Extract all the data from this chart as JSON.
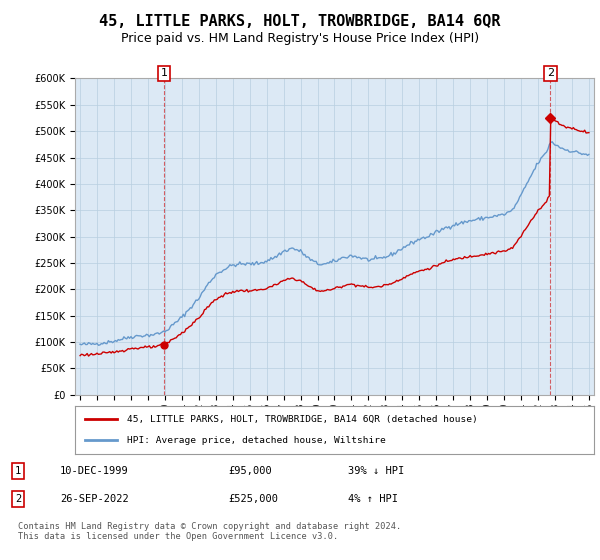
{
  "title": "45, LITTLE PARKS, HOLT, TROWBRIDGE, BA14 6QR",
  "subtitle": "Price paid vs. HM Land Registry's House Price Index (HPI)",
  "title_fontsize": 11,
  "subtitle_fontsize": 9,
  "background_color": "#ffffff",
  "plot_bg_color": "#dce9f5",
  "grid_color": "#b8cfe0",
  "sale1": {
    "date_num": 1999.94,
    "price": 95000,
    "label": "1",
    "date_str": "10-DEC-1999"
  },
  "sale2": {
    "date_num": 2022.73,
    "price": 525000,
    "label": "2",
    "date_str": "26-SEP-2022"
  },
  "legend_entry1": "45, LITTLE PARKS, HOLT, TROWBRIDGE, BA14 6QR (detached house)",
  "legend_entry2": "HPI: Average price, detached house, Wiltshire",
  "footer": "Contains HM Land Registry data © Crown copyright and database right 2024.\nThis data is licensed under the Open Government Licence v3.0.",
  "ylim": [
    0,
    600000
  ],
  "yticks": [
    0,
    50000,
    100000,
    150000,
    200000,
    250000,
    300000,
    350000,
    400000,
    450000,
    500000,
    550000,
    600000
  ],
  "xlim_start": 1994.7,
  "xlim_end": 2025.3,
  "red_color": "#cc0000",
  "blue_color": "#6699cc",
  "hpi_anchors_x": [
    1995.0,
    1995.5,
    1996.0,
    1996.5,
    1997.0,
    1997.5,
    1998.0,
    1998.5,
    1999.0,
    1999.5,
    2000.0,
    2000.5,
    2001.0,
    2001.5,
    2002.0,
    2002.5,
    2003.0,
    2003.5,
    2004.0,
    2004.5,
    2005.0,
    2005.5,
    2006.0,
    2006.5,
    2007.0,
    2007.5,
    2008.0,
    2008.5,
    2009.0,
    2009.5,
    2010.0,
    2010.5,
    2011.0,
    2011.5,
    2012.0,
    2012.5,
    2013.0,
    2013.5,
    2014.0,
    2014.5,
    2015.0,
    2015.5,
    2016.0,
    2016.5,
    2017.0,
    2017.5,
    2018.0,
    2018.5,
    2019.0,
    2019.5,
    2020.0,
    2020.5,
    2021.0,
    2021.5,
    2022.0,
    2022.5,
    2022.73,
    2023.0,
    2023.5,
    2024.0,
    2024.5,
    2025.0
  ],
  "hpi_anchors_y": [
    95000,
    96000,
    97000,
    99000,
    102000,
    106000,
    110000,
    112000,
    113000,
    115000,
    120000,
    133000,
    147000,
    165000,
    183000,
    208000,
    228000,
    238000,
    246000,
    248000,
    248000,
    249000,
    254000,
    261000,
    272000,
    278000,
    272000,
    258000,
    248000,
    248000,
    253000,
    260000,
    264000,
    260000,
    256000,
    257000,
    261000,
    268000,
    278000,
    287000,
    295000,
    300000,
    308000,
    316000,
    322000,
    326000,
    330000,
    333000,
    336000,
    339000,
    342000,
    350000,
    378000,
    410000,
    440000,
    460000,
    480000,
    475000,
    466000,
    462000,
    458000,
    455000
  ]
}
